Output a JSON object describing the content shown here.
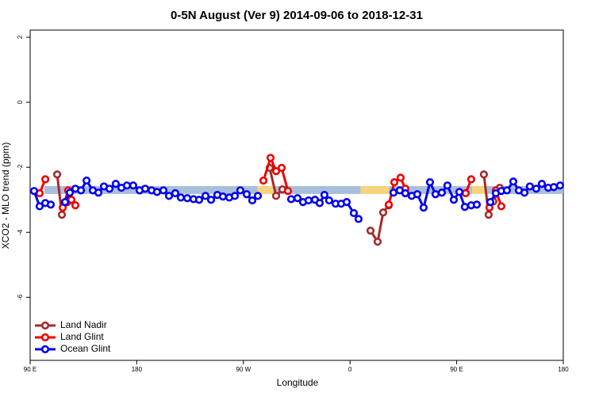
{
  "chart_data": {
    "type": "line",
    "title": "0-5N August (Ver 9)   2014-09-06 to 2018-12-31",
    "xlabel": "Longitude",
    "ylabel": "XCO2 - MLO trend (ppm)",
    "xlim": [
      90,
      540
    ],
    "ylim": [
      -7.94,
      2.22
    ],
    "xticks": [
      {
        "value": 90,
        "label": "90 E"
      },
      {
        "value": 180,
        "label": "180"
      },
      {
        "value": 270,
        "label": "90 W"
      },
      {
        "value": 360,
        "label": "0"
      },
      {
        "value": 450,
        "label": "90 E"
      },
      {
        "value": 540,
        "label": "180"
      }
    ],
    "yticks": [
      -6,
      -4,
      -2,
      0,
      2
    ],
    "legend": "bottom-left",
    "band": {
      "y": -2.7,
      "segments": [
        {
          "x": [
            102,
            282
          ],
          "color": "#a9bedb"
        },
        {
          "x": [
            282,
            296
          ],
          "color": "#f7d47c"
        },
        {
          "x": [
            296,
            369
          ],
          "color": "#a9bedb"
        },
        {
          "x": [
            369,
            393
          ],
          "color": "#f7d47c"
        },
        {
          "x": [
            393,
            463
          ],
          "color": "#a9bedb"
        },
        {
          "x": [
            463,
            474
          ],
          "color": "#f7d47c"
        },
        {
          "x": [
            474,
            540
          ],
          "color": "#a9bedb"
        }
      ]
    },
    "series": [
      {
        "name": "Land Nadir",
        "color": "#a52a2a",
        "x": [
          112.8,
          116.8,
          121.5,
          null,
          292.2,
          297.6,
          302.9,
          null,
          377.3,
          383.3,
          388,
          392.7,
          null,
          473,
          477,
          481,
          486.4
        ],
        "values": [
          -2.22,
          -3.46,
          -3.07,
          null,
          -2.02,
          -2.88,
          -2.68,
          null,
          -3.95,
          -4.29,
          -3.39,
          -3.17,
          null,
          -2.22,
          -3.46,
          -3.05,
          -2.63
        ]
      },
      {
        "name": "Land Glint",
        "color": "#ee0000",
        "x": [
          98,
          102.8,
          null,
          117.5,
          122.1,
          124.8,
          128.2,
          null,
          286.9,
          292.9,
          297.6,
          302.3,
          307.6,
          null,
          392.7,
          397.4,
          402.7,
          406.7,
          null,
          457.6,
          462.3,
          null,
          477.7,
          483.1,
          487.7
        ],
        "values": [
          -2.8,
          -2.37,
          null,
          -3.24,
          -2.71,
          -3.0,
          -3.17,
          null,
          -2.41,
          -1.71,
          -2.12,
          -2.02,
          -2.73,
          null,
          -3.15,
          -2.46,
          -2.32,
          -2.66,
          null,
          -2.8,
          -2.37,
          null,
          -3.24,
          -2.71,
          -3.2
        ]
      },
      {
        "name": "Ocean Glint",
        "color": "#0000ee",
        "x": [
          93.3,
          98,
          102.8,
          107.4,
          null,
          119.5,
          123.5,
          128.2,
          132.9,
          137.6,
          142.9,
          147.6,
          152.3,
          157,
          162.3,
          167,
          171.7,
          177,
          182.4,
          187.1,
          192.5,
          197.1,
          202.5,
          207.2,
          212.5,
          217.2,
          222.6,
          227.9,
          232.6,
          238,
          242.7,
          248,
          252.7,
          258.1,
          262.8,
          267.4,
          272.8,
          277.5,
          282.2,
          null,
          310.3,
          315.7,
          320.3,
          325,
          330.4,
          334.4,
          338.4,
          342.4,
          347.8,
          352.5,
          357.2,
          363.2,
          367.2,
          null,
          396.7,
          402,
          406.7,
          412.1,
          416.8,
          422.1,
          427.5,
          432.2,
          437.5,
          442.2,
          447.6,
          452.3,
          456.9,
          462.3,
          467,
          null,
          478.4,
          483.1,
          487.7,
          492.4,
          497.8,
          502.5,
          507.2,
          511.8,
          517.2,
          521.9,
          527.3,
          532,
          537.3
        ],
        "values": [
          -2.73,
          -3.2,
          -3.1,
          -3.15,
          null,
          -3.07,
          -2.78,
          -2.66,
          -2.71,
          -2.41,
          -2.71,
          -2.78,
          -2.59,
          -2.66,
          -2.51,
          -2.63,
          -2.56,
          -2.56,
          -2.71,
          -2.66,
          -2.71,
          -2.76,
          -2.71,
          -2.88,
          -2.8,
          -2.93,
          -2.95,
          -2.98,
          -3,
          -2.88,
          -3,
          -2.85,
          -2.9,
          -2.93,
          -2.88,
          -2.71,
          -2.83,
          -3.02,
          -2.88,
          null,
          -2.98,
          -2.95,
          -3.07,
          -3.02,
          -3,
          -3.1,
          -2.85,
          -3.02,
          -3.12,
          -3.12,
          -3.07,
          -3.41,
          -3.59,
          null,
          -2.78,
          -2.71,
          -2.8,
          -2.88,
          -2.83,
          -3.24,
          -2.46,
          -2.83,
          -2.78,
          -2.56,
          -3,
          -2.76,
          -3.22,
          -3.17,
          -3.15,
          null,
          -3.07,
          -2.8,
          -2.73,
          -2.71,
          -2.44,
          -2.71,
          -2.78,
          -2.59,
          -2.66,
          -2.51,
          -2.63,
          -2.61,
          -2.56
        ]
      }
    ]
  }
}
